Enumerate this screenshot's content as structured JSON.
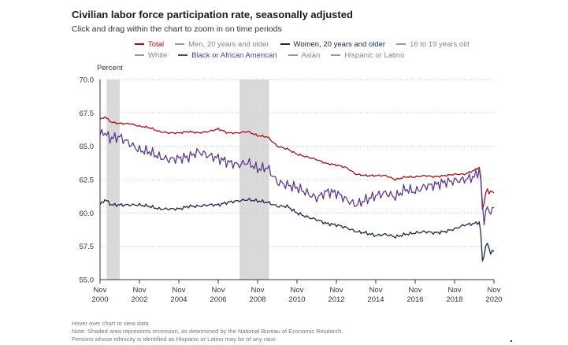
{
  "header": {
    "title": "Civilian labor force participation rate, seasonally adjusted",
    "subtitle": "Click and drag within the chart to zoom in on time periods"
  },
  "legend": {
    "row1": [
      {
        "name": "Total",
        "color": "#a50f15",
        "text_color": "#a50f15"
      },
      {
        "name": "Men, 20 years and older",
        "color": "#999999",
        "text_color": "#888888"
      },
      {
        "name": "Women, 20 years and older",
        "color": "#1b2a48",
        "text_color": "#1b2a48"
      },
      {
        "name": "16 to 19 years old",
        "color": "#999999",
        "text_color": "#888888"
      }
    ],
    "row2": [
      {
        "name": "White",
        "color": "#999999",
        "text_color": "#888888"
      },
      {
        "name": "Black or African American",
        "color": "#5b3a8c",
        "text_color": "#5b3a8c"
      },
      {
        "name": "Asian",
        "color": "#999999",
        "text_color": "#888888"
      },
      {
        "name": "Hispanic or Latino",
        "color": "#999999",
        "text_color": "#888888"
      }
    ]
  },
  "footer": {
    "line1": "Hover over chart to view data.",
    "line2": "Note: Shaded area represents recession, as determined by the National Bureau of Economic Research.",
    "line3": "Persons whose ethnicity is identified as Hispanic or Latino may be of any race."
  },
  "chart_data": {
    "type": "line",
    "ylabel": "Percent",
    "ylim": [
      55.0,
      70.0
    ],
    "yticks": [
      "70.0",
      "67.5",
      "65.0",
      "62.5",
      "60.0",
      "57.5",
      "55.0"
    ],
    "xlim": [
      "2000-11",
      "2020-11"
    ],
    "xticks": [
      {
        "month": "Nov",
        "year": "2000",
        "date": "2000-11"
      },
      {
        "month": "Nov",
        "year": "2002",
        "date": "2002-11"
      },
      {
        "month": "Nov",
        "year": "2004",
        "date": "2004-11"
      },
      {
        "month": "Nov",
        "year": "2006",
        "date": "2006-11"
      },
      {
        "month": "Nov",
        "year": "2008",
        "date": "2008-11"
      },
      {
        "month": "Nov",
        "year": "2010",
        "date": "2010-11"
      },
      {
        "month": "Nov",
        "year": "2012",
        "date": "2012-11"
      },
      {
        "month": "Nov",
        "year": "2014",
        "date": "2014-11"
      },
      {
        "month": "Nov",
        "year": "2016",
        "date": "2016-11"
      },
      {
        "month": "Nov",
        "year": "2018",
        "date": "2018-11"
      },
      {
        "month": "Nov",
        "year": "2020",
        "date": "2020-11"
      }
    ],
    "recessions": [
      {
        "start": "2001-03",
        "end": "2001-11"
      },
      {
        "start": "2007-12",
        "end": "2009-06"
      }
    ],
    "grid": "horizontal dotted",
    "series": [
      {
        "name": "Total",
        "color": "#a50f15",
        "points": [
          [
            "2000-11",
            67.0
          ],
          [
            "2001-02",
            67.2
          ],
          [
            "2001-06",
            66.8
          ],
          [
            "2001-11",
            66.7
          ],
          [
            "2002-05",
            66.7
          ],
          [
            "2002-11",
            66.5
          ],
          [
            "2003-05",
            66.4
          ],
          [
            "2003-11",
            66.1
          ],
          [
            "2004-05",
            66.0
          ],
          [
            "2004-11",
            66.0
          ],
          [
            "2005-05",
            66.1
          ],
          [
            "2005-11",
            66.0
          ],
          [
            "2006-05",
            66.1
          ],
          [
            "2006-11",
            66.3
          ],
          [
            "2007-05",
            66.0
          ],
          [
            "2007-11",
            66.0
          ],
          [
            "2008-05",
            66.1
          ],
          [
            "2008-11",
            65.8
          ],
          [
            "2009-05",
            65.7
          ],
          [
            "2009-11",
            65.0
          ],
          [
            "2010-05",
            64.8
          ],
          [
            "2010-11",
            64.4
          ],
          [
            "2011-05",
            64.2
          ],
          [
            "2011-11",
            64.0
          ],
          [
            "2012-05",
            63.7
          ],
          [
            "2012-11",
            63.6
          ],
          [
            "2013-05",
            63.4
          ],
          [
            "2013-11",
            62.9
          ],
          [
            "2014-05",
            62.8
          ],
          [
            "2014-11",
            62.8
          ],
          [
            "2015-05",
            62.8
          ],
          [
            "2015-11",
            62.5
          ],
          [
            "2016-05",
            62.7
          ],
          [
            "2016-11",
            62.7
          ],
          [
            "2017-05",
            62.8
          ],
          [
            "2017-11",
            62.7
          ],
          [
            "2018-05",
            62.8
          ],
          [
            "2018-11",
            62.9
          ],
          [
            "2019-05",
            62.9
          ],
          [
            "2019-11",
            63.2
          ],
          [
            "2020-02",
            63.4
          ],
          [
            "2020-03",
            62.7
          ],
          [
            "2020-04",
            60.2
          ],
          [
            "2020-05",
            60.8
          ],
          [
            "2020-06",
            61.5
          ],
          [
            "2020-07",
            61.8
          ],
          [
            "2020-08",
            61.4
          ],
          [
            "2020-09",
            61.7
          ],
          [
            "2020-10",
            61.6
          ],
          [
            "2020-11",
            61.5
          ]
        ]
      },
      {
        "name": "Black or African American",
        "color": "#5b3a8c",
        "points": [
          [
            "2000-11",
            65.8
          ],
          [
            "2001-01",
            66.1
          ],
          [
            "2001-05",
            65.6
          ],
          [
            "2001-11",
            65.7
          ],
          [
            "2002-05",
            65.2
          ],
          [
            "2002-11",
            64.7
          ],
          [
            "2003-05",
            64.6
          ],
          [
            "2003-11",
            64.2
          ],
          [
            "2004-05",
            64.0
          ],
          [
            "2004-11",
            64.1
          ],
          [
            "2005-05",
            64.2
          ],
          [
            "2005-11",
            64.6
          ],
          [
            "2006-05",
            64.3
          ],
          [
            "2006-11",
            64.1
          ],
          [
            "2007-05",
            63.8
          ],
          [
            "2007-11",
            63.6
          ],
          [
            "2008-05",
            63.8
          ],
          [
            "2008-11",
            63.3
          ],
          [
            "2009-05",
            63.4
          ],
          [
            "2009-11",
            62.3
          ],
          [
            "2010-05",
            62.1
          ],
          [
            "2010-11",
            61.9
          ],
          [
            "2011-05",
            61.5
          ],
          [
            "2011-11",
            61.1
          ],
          [
            "2012-05",
            61.6
          ],
          [
            "2012-11",
            61.5
          ],
          [
            "2013-05",
            61.0
          ],
          [
            "2013-11",
            60.6
          ],
          [
            "2014-05",
            61.0
          ],
          [
            "2014-11",
            61.3
          ],
          [
            "2015-05",
            61.5
          ],
          [
            "2015-11",
            61.2
          ],
          [
            "2016-05",
            61.8
          ],
          [
            "2016-11",
            61.6
          ],
          [
            "2017-05",
            62.0
          ],
          [
            "2017-11",
            62.1
          ],
          [
            "2018-05",
            62.3
          ],
          [
            "2018-11",
            62.4
          ],
          [
            "2019-05",
            62.5
          ],
          [
            "2019-11",
            62.7
          ],
          [
            "2020-02",
            63.2
          ],
          [
            "2020-03",
            62.5
          ],
          [
            "2020-04",
            60.4
          ],
          [
            "2020-05",
            59.5
          ],
          [
            "2020-06",
            60.1
          ],
          [
            "2020-07",
            60.4
          ],
          [
            "2020-08",
            59.9
          ],
          [
            "2020-09",
            60.2
          ],
          [
            "2020-10",
            60.4
          ],
          [
            "2020-11",
            60.4
          ]
        ]
      },
      {
        "name": "Women, 20 years and older",
        "color": "#1b2a48",
        "points": [
          [
            "2000-11",
            60.6
          ],
          [
            "2001-02",
            61.0
          ],
          [
            "2001-06",
            60.6
          ],
          [
            "2001-11",
            60.6
          ],
          [
            "2002-05",
            60.6
          ],
          [
            "2002-11",
            60.6
          ],
          [
            "2003-05",
            60.5
          ],
          [
            "2003-11",
            60.3
          ],
          [
            "2004-05",
            60.3
          ],
          [
            "2004-11",
            60.3
          ],
          [
            "2005-05",
            60.5
          ],
          [
            "2005-11",
            60.5
          ],
          [
            "2006-05",
            60.6
          ],
          [
            "2006-11",
            60.6
          ],
          [
            "2007-05",
            60.8
          ],
          [
            "2007-11",
            60.9
          ],
          [
            "2008-05",
            61.0
          ],
          [
            "2008-11",
            60.9
          ],
          [
            "2009-05",
            60.8
          ],
          [
            "2009-11",
            60.5
          ],
          [
            "2010-05",
            60.5
          ],
          [
            "2010-11",
            60.0
          ],
          [
            "2011-05",
            59.7
          ],
          [
            "2011-11",
            59.5
          ],
          [
            "2012-05",
            59.2
          ],
          [
            "2012-11",
            59.1
          ],
          [
            "2013-05",
            58.9
          ],
          [
            "2013-11",
            58.6
          ],
          [
            "2014-05",
            58.5
          ],
          [
            "2014-11",
            58.3
          ],
          [
            "2015-05",
            58.4
          ],
          [
            "2015-11",
            58.2
          ],
          [
            "2016-05",
            58.4
          ],
          [
            "2016-11",
            58.5
          ],
          [
            "2017-05",
            58.6
          ],
          [
            "2017-11",
            58.5
          ],
          [
            "2018-05",
            58.6
          ],
          [
            "2018-11",
            58.8
          ],
          [
            "2019-05",
            59.1
          ],
          [
            "2019-11",
            59.2
          ],
          [
            "2020-02",
            59.3
          ],
          [
            "2020-03",
            58.5
          ],
          [
            "2020-04",
            56.3
          ],
          [
            "2020-05",
            56.9
          ],
          [
            "2020-06",
            57.5
          ],
          [
            "2020-07",
            57.7
          ],
          [
            "2020-08",
            57.3
          ],
          [
            "2020-09",
            57.0
          ],
          [
            "2020-10",
            57.2
          ],
          [
            "2020-11",
            57.1
          ]
        ]
      }
    ]
  }
}
